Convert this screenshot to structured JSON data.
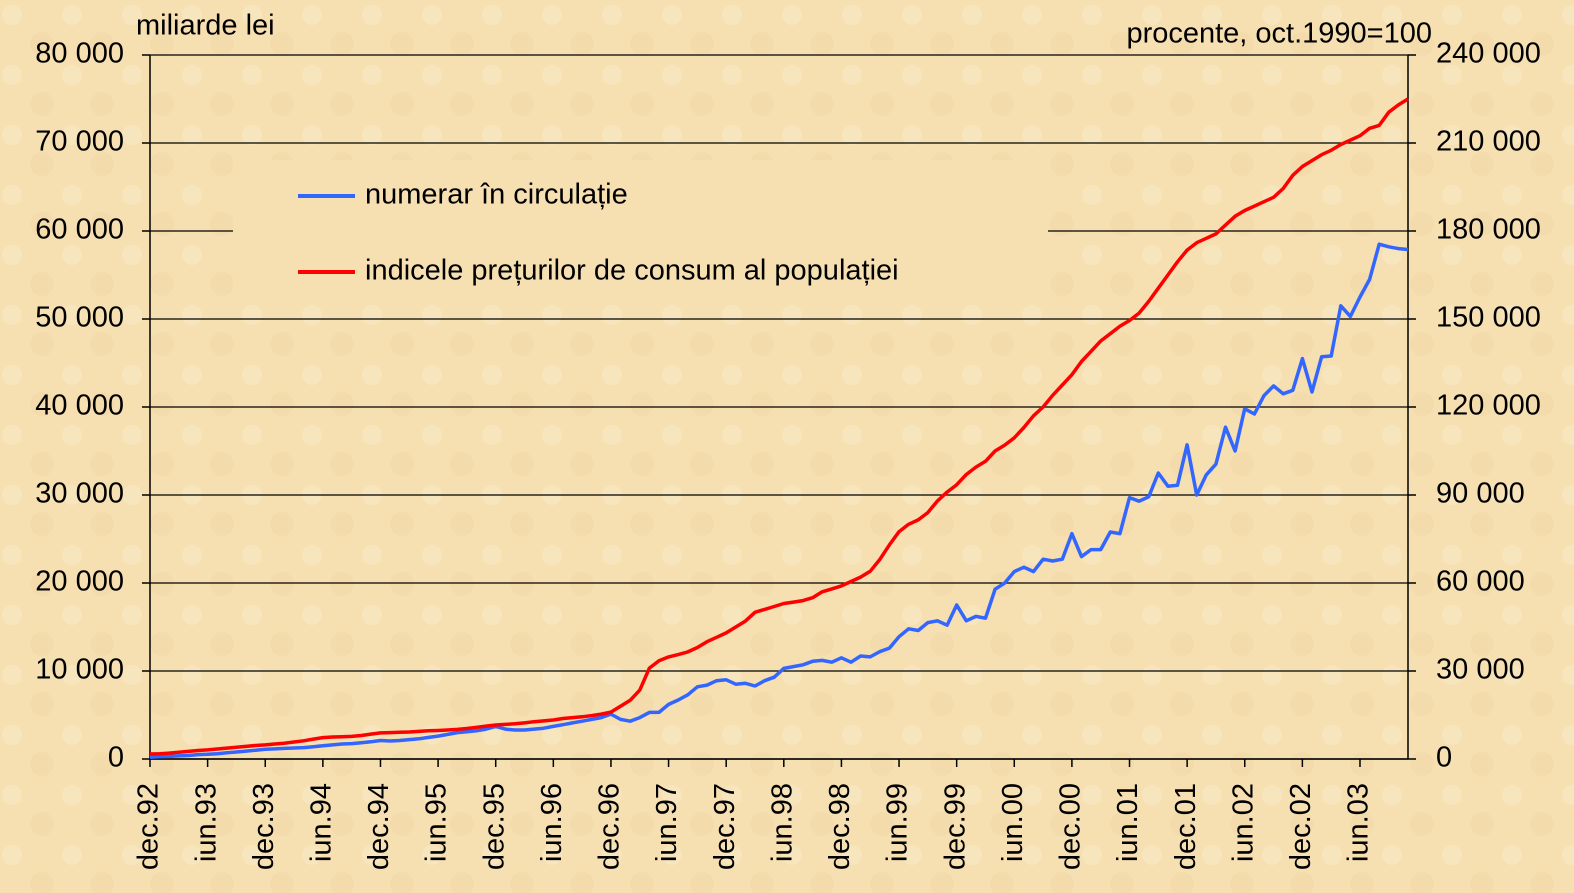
{
  "chart_data": {
    "type": "line",
    "ylabel": "miliarde lei",
    "y2label": "procente, oct.1990=100",
    "categories": [
      "dec.92",
      null,
      null,
      null,
      null,
      null,
      "iun.93",
      null,
      null,
      null,
      null,
      null,
      "dec.93",
      null,
      null,
      null,
      null,
      null,
      "iun.94",
      null,
      null,
      null,
      null,
      null,
      "dec.94",
      null,
      null,
      null,
      null,
      null,
      "iun.95",
      null,
      null,
      null,
      null,
      null,
      "dec.95",
      null,
      null,
      null,
      null,
      null,
      "iun.96",
      null,
      null,
      null,
      null,
      null,
      "dec.96",
      null,
      null,
      null,
      null,
      null,
      "iun.97",
      null,
      null,
      null,
      null,
      null,
      "dec.97",
      null,
      null,
      null,
      null,
      null,
      "iun.98",
      null,
      null,
      null,
      null,
      null,
      "dec.98",
      null,
      null,
      null,
      null,
      null,
      "iun.99",
      null,
      null,
      null,
      null,
      null,
      "dec.99",
      null,
      null,
      null,
      null,
      null,
      "iun.00",
      null,
      null,
      null,
      null,
      null,
      "dec.00",
      null,
      null,
      null,
      null,
      null,
      "iun.01",
      null,
      null,
      null,
      null,
      null,
      "dec.01",
      null,
      null,
      null,
      null,
      null,
      "iun.02",
      null,
      null,
      null,
      null,
      null,
      "dec.02",
      null,
      null,
      null,
      null,
      null,
      "iun.03",
      null,
      null,
      null,
      null,
      null
    ],
    "series": [
      {
        "name": "numerar în circulație",
        "color": "#3366ff",
        "values": [
          200,
          250,
          300,
          350,
          400,
          500,
          550,
          600,
          700,
          800,
          900,
          1000,
          1100,
          1150,
          1200,
          1250,
          1300,
          1400,
          1500,
          1600,
          1700,
          1750,
          1850,
          1950,
          2100,
          2050,
          2100,
          2200,
          2300,
          2450,
          2600,
          2800,
          3000,
          3100,
          3200,
          3400,
          3700,
          3400,
          3300,
          3300,
          3400,
          3500,
          3700,
          3900,
          4100,
          4300,
          4500,
          4700,
          5100,
          4500,
          4300,
          4700,
          5300,
          5300,
          6200,
          6700,
          7300,
          8200,
          8400,
          8900,
          9000,
          8500,
          8600,
          8300,
          8900,
          9300,
          10300,
          10500,
          10700,
          11100,
          11200,
          11000,
          11500,
          11000,
          11700,
          11600,
          12200,
          12600,
          13900,
          14800,
          14600,
          15500,
          15700,
          15200,
          17500,
          15700,
          16200,
          16000,
          19300,
          20000,
          21300,
          21800,
          21300,
          22700,
          22500,
          22700,
          25600,
          23000,
          23800,
          23800,
          25800,
          25600,
          29700,
          29300,
          29800,
          32500,
          31000,
          31100,
          35700,
          30000,
          32300,
          33500,
          37700,
          35000,
          39800,
          39200,
          41300,
          42400,
          41500,
          41900,
          45500,
          41700,
          45700,
          45800,
          51500,
          50300,
          52500,
          54500,
          58500,
          58200,
          58000,
          57900
        ]
      },
      {
        "name": "indicele prețurilor de consum al populației",
        "color": "#ff0000",
        "axis": "y2",
        "values": [
          1700,
          1800,
          2000,
          2300,
          2600,
          2900,
          3100,
          3400,
          3700,
          4000,
          4300,
          4600,
          4800,
          5100,
          5400,
          5800,
          6200,
          6800,
          7300,
          7500,
          7600,
          7700,
          8000,
          8500,
          8900,
          9000,
          9100,
          9200,
          9400,
          9600,
          9700,
          9900,
          10100,
          10400,
          10800,
          11200,
          11600,
          11800,
          12000,
          12300,
          12700,
          13000,
          13300,
          13800,
          14100,
          14400,
          14800,
          15300,
          16000,
          18000,
          20000,
          23500,
          31000,
          33500,
          34800,
          35600,
          36500,
          38000,
          40000,
          41500,
          43000,
          45000,
          47000,
          50000,
          51000,
          52000,
          53000,
          53500,
          54000,
          55000,
          57000,
          58000,
          59000,
          60500,
          62000,
          64000,
          68000,
          73000,
          77500,
          80000,
          81500,
          84000,
          88000,
          91000,
          93500,
          97000,
          99500,
          101500,
          105000,
          107000,
          109500,
          113000,
          117000,
          120000,
          124000,
          127500,
          131000,
          135500,
          139000,
          142500,
          145000,
          147500,
          149500,
          152000,
          156000,
          160500,
          165000,
          169500,
          173500,
          176000,
          177500,
          179000,
          182000,
          185000,
          187000,
          188500,
          190000,
          191500,
          194500,
          199000,
          202000,
          204000,
          206000,
          207500,
          209500,
          211000,
          212500,
          215000,
          216000,
          220500,
          223000,
          225000
        ]
      }
    ],
    "ylim": [
      0,
      80000
    ],
    "yticks": [
      0,
      {
        "value": 10000,
        "label": "10 000"
      },
      {
        "value": 20000,
        "label": "20 000"
      },
      {
        "value": 30000,
        "label": "30 000"
      },
      {
        "value": 40000,
        "label": "40 000"
      },
      {
        "value": 50000,
        "label": "50 000"
      },
      {
        "value": 60000,
        "label": "60 000"
      },
      {
        "value": 70000,
        "label": "70 000"
      },
      {
        "value": 80000,
        "label": "80 000"
      }
    ],
    "y2lim": [
      0,
      240000
    ],
    "y2ticks": [
      0,
      {
        "value": 30000,
        "label": "30 000"
      },
      {
        "value": 60000,
        "label": "60 000"
      },
      {
        "value": 90000,
        "label": "90 000"
      },
      {
        "value": 120000,
        "label": "120 000"
      },
      {
        "value": 150000,
        "label": "150 000"
      },
      {
        "value": 180000,
        "label": "180 000"
      },
      {
        "value": 210000,
        "label": "210 000"
      },
      {
        "value": 240000,
        "label": "240 000"
      }
    ],
    "grid": true,
    "legend": "upper left"
  }
}
